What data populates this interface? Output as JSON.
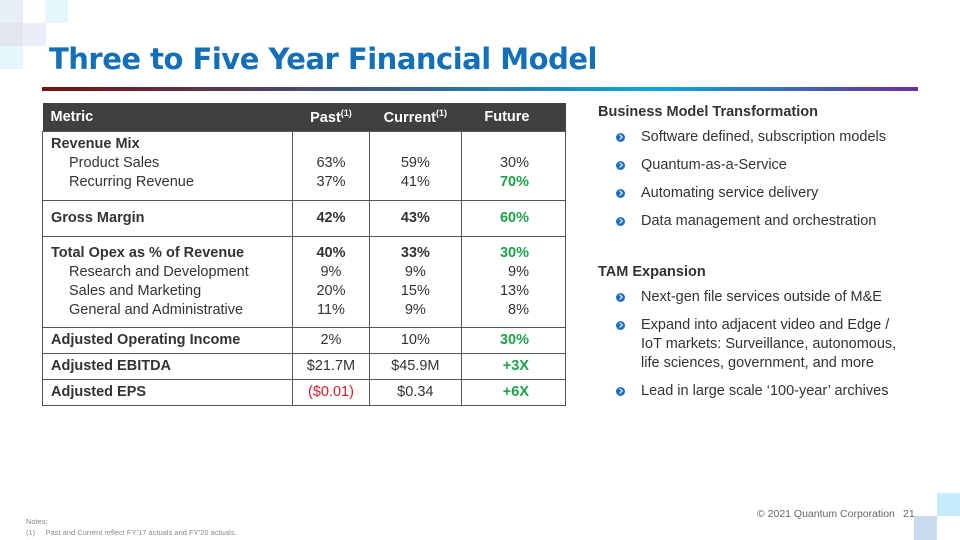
{
  "title": "Three to Five Year Financial Model",
  "table": {
    "headers": {
      "metric": "Metric",
      "past": "Past",
      "current": "Current",
      "future": "Future",
      "footnote": "(1)"
    },
    "revenue_mix": {
      "label": "Revenue Mix",
      "rows": [
        {
          "label": "Product Sales",
          "past": "63%",
          "current": "59%",
          "future": "30%"
        },
        {
          "label": "Recurring Revenue",
          "past": "37%",
          "current": "41%",
          "future": "70%"
        }
      ]
    },
    "gross_margin": {
      "label": "Gross Margin",
      "past": "42%",
      "current": "43%",
      "future": "60%"
    },
    "opex": {
      "label": "Total Opex as % of Revenue",
      "past": "40%",
      "current": "33%",
      "future": "30%",
      "rows": [
        {
          "label": "Research and Development",
          "past": "9%",
          "current": "9%",
          "future": "9%"
        },
        {
          "label": "Sales and Marketing",
          "past": "20%",
          "current": "15%",
          "future": "13%"
        },
        {
          "label": "General and Administrative",
          "past": "11%",
          "current": "9%",
          "future": "8%"
        }
      ]
    },
    "aoi": {
      "label": "Adjusted Operating Income",
      "past": "2%",
      "current": "10%",
      "future": "30%"
    },
    "ebitda": {
      "label": "Adjusted EBITDA",
      "past": "$21.7M",
      "current": "$45.9M",
      "future": "+3X"
    },
    "eps": {
      "label": "Adjusted EPS",
      "past": "($0.01)",
      "current": "$0.34",
      "future": "+6X"
    }
  },
  "right": {
    "bmt": {
      "heading": "Business Model Transformation",
      "items": [
        "Software defined, subscription models",
        "Quantum-as-a-Service",
        "Automating service delivery",
        "Data management and orchestration"
      ]
    },
    "tam": {
      "heading": "TAM Expansion",
      "items": [
        "Next-gen file services outside of M&E",
        "Expand into adjacent video and Edge / IoT markets:  Surveillance, autonomous, life sciences, government, and more",
        "Lead in large scale ‘100-year’ archives"
      ]
    }
  },
  "footer": {
    "notes_label": "Notes:",
    "note_num": "(1)",
    "note_text": "Past and Current reflect FY’17 actuals and FY’20 actuals.",
    "copyright": "© 2021 Quantum Corporation",
    "page": "21"
  },
  "colors": {
    "title": "#1370b8",
    "positive": "#1fa24a",
    "negative": "#d0202a",
    "header_bg": "#404040",
    "bullet": "#1f6fc0"
  }
}
